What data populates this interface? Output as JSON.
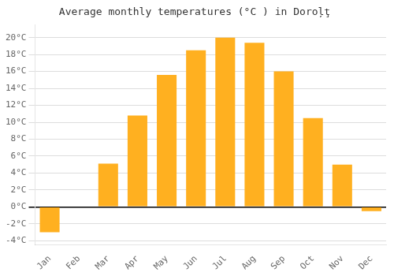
{
  "chart_data": {
    "type": "bar",
    "title": "Average monthly temperatures (°C ) in Doroļţ",
    "categories": [
      "Jan",
      "Feb",
      "Mar",
      "Apr",
      "May",
      "Jun",
      "Jul",
      "Aug",
      "Sep",
      "Oct",
      "Nov",
      "Dec"
    ],
    "values": [
      -3.0,
      0,
      5.1,
      10.8,
      15.6,
      18.5,
      20.0,
      19.4,
      16.0,
      10.5,
      5.0,
      -0.5
    ],
    "color": "#FFB020",
    "ylim": [
      -4.5,
      21.5
    ],
    "yticks": [
      {
        "value": -4,
        "label": "-4°C"
      },
      {
        "value": -2,
        "label": "-2°C"
      },
      {
        "value": 0,
        "label": "0°C"
      },
      {
        "value": 2,
        "label": "2°C"
      },
      {
        "value": 4,
        "label": "4°C"
      },
      {
        "value": 6,
        "label": "6°C"
      },
      {
        "value": 8,
        "label": "8°C"
      },
      {
        "value": 10,
        "label": "10°C"
      },
      {
        "value": 12,
        "label": "12°C"
      },
      {
        "value": 14,
        "label": "14°C"
      },
      {
        "value": 16,
        "label": "16°C"
      },
      {
        "value": 18,
        "label": "18°C"
      },
      {
        "value": 20,
        "label": "20°C"
      }
    ],
    "grid": true
  }
}
